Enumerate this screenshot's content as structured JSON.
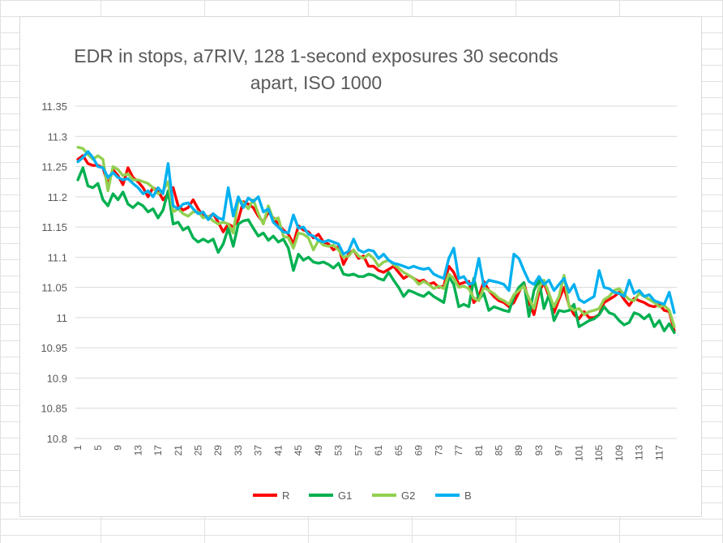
{
  "chart_data": {
    "type": "line",
    "title_lines": [
      "EDR in stops, a7RIV, 128 1-second exposures 30 seconds",
      "apart, ISO 1000"
    ],
    "xlabel": "",
    "ylabel": "",
    "ylim": [
      10.8,
      11.35
    ],
    "y_ticks": [
      "10.8",
      "10.85",
      "10.9",
      "10.95",
      "11",
      "11.05",
      "11.1",
      "11.15",
      "11.2",
      "11.25",
      "11.3",
      "11.35"
    ],
    "x_ticks": [
      "1",
      "5",
      "9",
      "13",
      "17",
      "21",
      "25",
      "29",
      "33",
      "37",
      "41",
      "45",
      "49",
      "53",
      "57",
      "61",
      "65",
      "69",
      "73",
      "77",
      "81",
      "85",
      "89",
      "93",
      "97",
      "101",
      "105",
      "109",
      "113",
      "117"
    ],
    "x_count": 120,
    "grid": "horizontal",
    "legend_position": "bottom",
    "series": [
      {
        "name": "R",
        "color": "#ff0000",
        "values": [
          11.262,
          11.268,
          11.255,
          11.252,
          11.252,
          11.248,
          11.22,
          11.245,
          11.235,
          11.22,
          11.248,
          11.232,
          11.225,
          11.215,
          11.2,
          11.215,
          11.21,
          11.195,
          11.205,
          11.215,
          11.185,
          11.178,
          11.182,
          11.195,
          11.18,
          11.168,
          11.165,
          11.172,
          11.158,
          11.142,
          11.155,
          11.15,
          11.162,
          11.192,
          11.188,
          11.182,
          11.168,
          11.158,
          11.175,
          11.165,
          11.155,
          11.145,
          11.138,
          11.122,
          11.152,
          11.145,
          11.142,
          11.132,
          11.138,
          11.125,
          11.122,
          11.112,
          11.118,
          11.088,
          11.105,
          11.112,
          11.098,
          11.102,
          11.085,
          11.085,
          11.078,
          11.075,
          11.08,
          11.085,
          11.075,
          11.065,
          11.07,
          11.065,
          11.06,
          11.062,
          11.055,
          11.058,
          11.05,
          11.052,
          11.085,
          11.075,
          11.055,
          11.058,
          11.06,
          11.025,
          11.035,
          11.06,
          11.045,
          11.035,
          11.028,
          11.025,
          11.018,
          11.025,
          11.042,
          11.058,
          11.025,
          11.005,
          11.042,
          11.058,
          11.035,
          11.008,
          11.03,
          11.05,
          11.02,
          11.005,
          10.998,
          11.01,
          11.0,
          11.0,
          11.005,
          11.025,
          11.03,
          11.035,
          11.042,
          11.03,
          11.02,
          11.032,
          11.028,
          11.025,
          11.02,
          11.018,
          11.022,
          11.012,
          11.01,
          10.978
        ]
      },
      {
        "name": "G1",
        "color": "#00b050",
        "values": [
          11.228,
          11.248,
          11.218,
          11.215,
          11.222,
          11.195,
          11.185,
          11.205,
          11.195,
          11.208,
          11.188,
          11.182,
          11.19,
          11.185,
          11.175,
          11.18,
          11.165,
          11.178,
          11.21,
          11.155,
          11.158,
          11.145,
          11.15,
          11.132,
          11.125,
          11.13,
          11.125,
          11.13,
          11.108,
          11.122,
          11.148,
          11.118,
          11.155,
          11.16,
          11.162,
          11.148,
          11.135,
          11.14,
          11.128,
          11.135,
          11.125,
          11.13,
          11.115,
          11.078,
          11.105,
          11.095,
          11.1,
          11.092,
          11.09,
          11.092,
          11.088,
          11.082,
          11.09,
          11.072,
          11.07,
          11.072,
          11.068,
          11.068,
          11.072,
          11.07,
          11.065,
          11.062,
          11.075,
          11.062,
          11.05,
          11.035,
          11.045,
          11.042,
          11.038,
          11.035,
          11.042,
          11.035,
          11.03,
          11.025,
          11.068,
          11.055,
          11.018,
          11.022,
          11.018,
          11.065,
          11.03,
          11.04,
          11.012,
          11.018,
          11.015,
          11.012,
          11.01,
          11.035,
          11.05,
          11.058,
          11.002,
          11.045,
          11.062,
          11.015,
          11.038,
          10.995,
          11.012,
          11.01,
          11.012,
          11.022,
          10.985,
          10.99,
          10.995,
          10.998,
          11.005,
          11.018,
          11.008,
          11.005,
          10.995,
          10.988,
          10.992,
          11.008,
          11.005,
          10.998,
          11.005,
          10.985,
          10.995,
          10.978,
          10.99,
          10.975
        ]
      },
      {
        "name": "G2",
        "color": "#92d050",
        "values": [
          11.282,
          11.28,
          11.27,
          11.262,
          11.268,
          11.262,
          11.21,
          11.25,
          11.245,
          11.235,
          11.238,
          11.228,
          11.228,
          11.225,
          11.222,
          11.215,
          11.205,
          11.21,
          11.225,
          11.175,
          11.18,
          11.172,
          11.168,
          11.175,
          11.175,
          11.165,
          11.168,
          11.16,
          11.155,
          11.158,
          11.155,
          11.14,
          11.195,
          11.19,
          11.18,
          11.195,
          11.172,
          11.155,
          11.185,
          11.162,
          11.165,
          11.135,
          11.132,
          11.115,
          11.14,
          11.138,
          11.132,
          11.112,
          11.128,
          11.12,
          11.118,
          11.12,
          11.112,
          11.1,
          11.102,
          11.112,
          11.102,
          11.098,
          11.105,
          11.098,
          11.085,
          11.092,
          11.095,
          11.088,
          11.082,
          11.075,
          11.07,
          11.065,
          11.055,
          11.06,
          11.055,
          11.048,
          11.052,
          11.048,
          11.072,
          11.065,
          11.05,
          11.052,
          11.048,
          11.032,
          11.028,
          11.05,
          11.045,
          11.04,
          11.032,
          11.028,
          11.022,
          11.038,
          11.045,
          11.052,
          11.032,
          11.015,
          11.05,
          11.062,
          11.04,
          11.018,
          11.035,
          11.07,
          11.018,
          11.012,
          11.015,
          11.005,
          11.01,
          11.012,
          11.015,
          11.03,
          11.035,
          11.045,
          11.048,
          11.038,
          11.03,
          11.028,
          11.04,
          11.035,
          11.03,
          11.025,
          11.018,
          11.02,
          11.012,
          10.985
        ]
      },
      {
        "name": "B",
        "color": "#00b0f0",
        "values": [
          11.258,
          11.265,
          11.275,
          11.265,
          11.25,
          11.248,
          11.232,
          11.24,
          11.232,
          11.228,
          11.23,
          11.222,
          11.215,
          11.205,
          11.21,
          11.2,
          11.215,
          11.205,
          11.255,
          11.185,
          11.18,
          11.188,
          11.19,
          11.18,
          11.172,
          11.175,
          11.162,
          11.172,
          11.165,
          11.162,
          11.215,
          11.168,
          11.2,
          11.182,
          11.198,
          11.192,
          11.2,
          11.175,
          11.18,
          11.158,
          11.15,
          11.142,
          11.14,
          11.17,
          11.148,
          11.15,
          11.138,
          11.135,
          11.128,
          11.125,
          11.128,
          11.125,
          11.122,
          11.105,
          11.11,
          11.13,
          11.112,
          11.108,
          11.112,
          11.11,
          11.098,
          11.105,
          11.095,
          11.09,
          11.088,
          11.085,
          11.082,
          11.085,
          11.082,
          11.08,
          11.082,
          11.072,
          11.068,
          11.065,
          11.098,
          11.115,
          11.065,
          11.068,
          11.055,
          11.058,
          11.098,
          11.052,
          11.062,
          11.06,
          11.058,
          11.055,
          11.045,
          11.105,
          11.098,
          11.078,
          11.06,
          11.055,
          11.068,
          11.055,
          11.062,
          11.045,
          11.055,
          11.065,
          11.042,
          11.055,
          11.03,
          11.025,
          11.03,
          11.035,
          11.078,
          11.05,
          11.048,
          11.042,
          11.04,
          11.035,
          11.062,
          11.04,
          11.045,
          11.035,
          11.038,
          11.028,
          11.025,
          11.022,
          11.042,
          11.008
        ]
      }
    ]
  }
}
